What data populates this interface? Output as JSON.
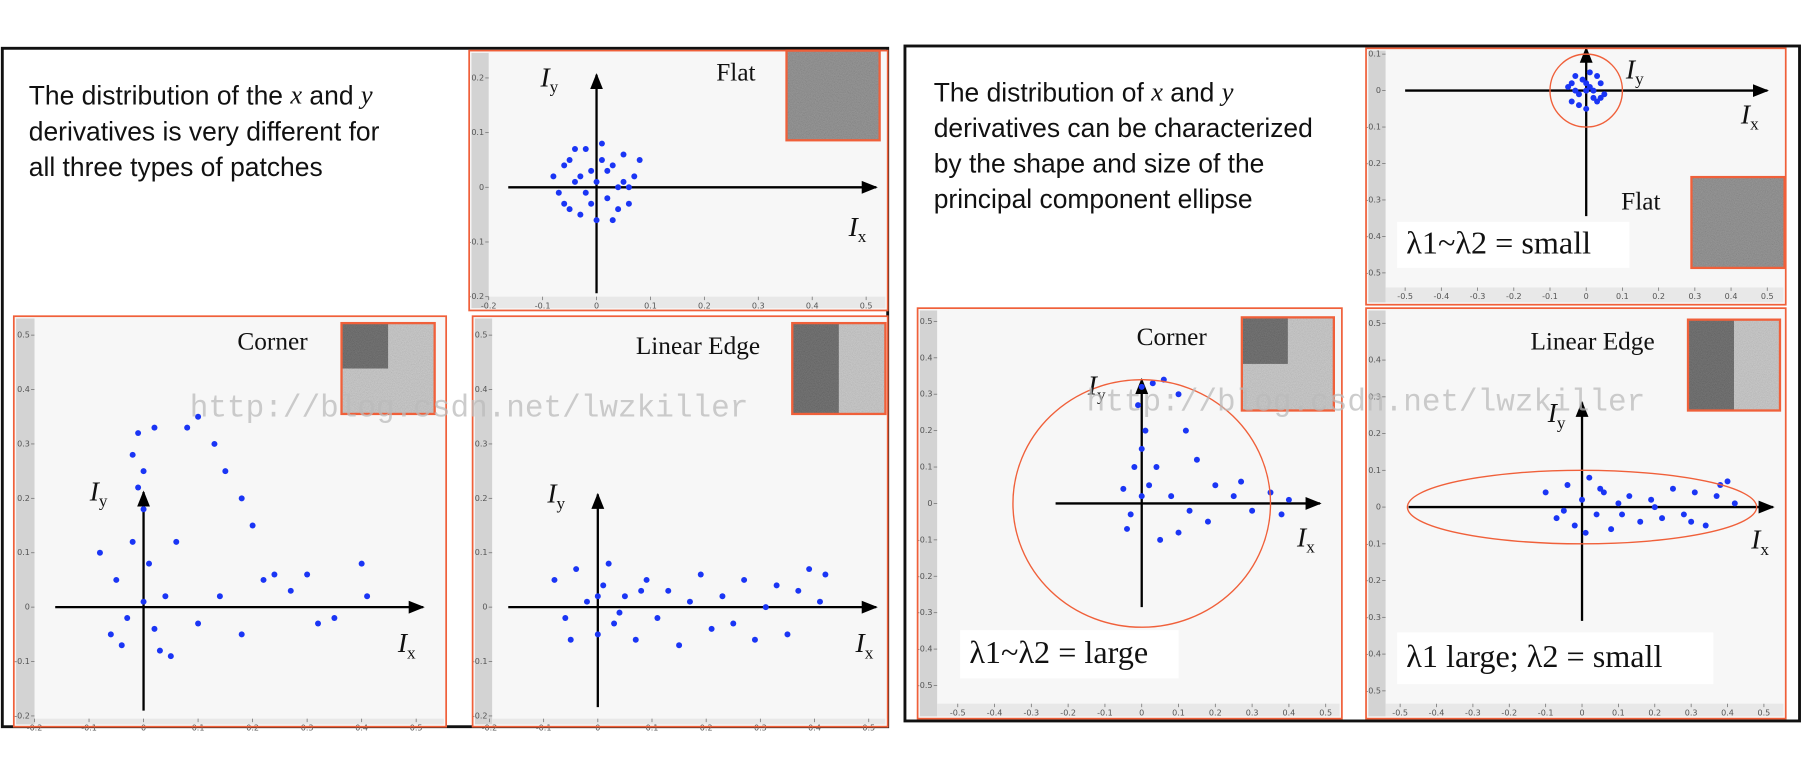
{
  "slides": [
    {
      "text_lines": [
        [
          "The distribution of the ",
          "x",
          " and ",
          "y"
        ],
        [
          "derivatives is very different for"
        ],
        [
          "all three types of patches"
        ]
      ]
    },
    {
      "text_lines": [
        [
          "The distribution of ",
          "x",
          " and ",
          "y"
        ],
        [
          "derivatives can be characterized"
        ],
        [
          "by the shape and size of the"
        ],
        [
          "principal component ellipse"
        ]
      ]
    }
  ],
  "watermarks": [
    "http://blog.csdn.net/lwzkiller",
    "http://blog.csdn.net/lwzkiller"
  ],
  "chart_data": [
    {
      "type": "scatter",
      "title": "Flat",
      "xlabel": "I",
      "xlabel_sub": "x",
      "ylabel": "I",
      "ylabel_sub": "y",
      "color": "#1a35f5",
      "xlim": [
        -0.2,
        0.54
      ],
      "ylim": [
        -0.2,
        0.25
      ],
      "xticks": [
        -0.2,
        -0.1,
        0,
        0.1,
        0.2,
        0.3,
        0.4,
        0.5
      ],
      "yticks": [
        -0.2,
        -0.1,
        0,
        0.1,
        0.2
      ],
      "x": [
        -0.08,
        -0.06,
        -0.05,
        -0.04,
        -0.03,
        -0.02,
        -0.01,
        0,
        0.01,
        0.02,
        0.03,
        0.04,
        0.05,
        0.06,
        0.07,
        -0.07,
        -0.05,
        -0.03,
        -0.01,
        0.01,
        0.03,
        0.05,
        -0.06,
        -0.02,
        0.02,
        0.06,
        -0.04,
        0,
        0.04,
        0.08
      ],
      "y": [
        0.02,
        -0.03,
        0.05,
        0.01,
        -0.05,
        0.07,
        0.03,
        -0.06,
        0.08,
        -0.02,
        0.04,
        -0.04,
        0.06,
        0,
        0.02,
        -0.01,
        -0.04,
        0.02,
        -0.03,
        0.05,
        -0.06,
        0.01,
        0.04,
        -0.01,
        0.03,
        -0.03,
        0.07,
        0.01,
        0,
        0.05
      ]
    },
    {
      "type": "scatter",
      "title": "Corner",
      "xlabel": "I",
      "xlabel_sub": "x",
      "ylabel": "I",
      "ylabel_sub": "y",
      "color": "#1a35f5",
      "xlim": [
        -0.2,
        0.555
      ],
      "ylim": [
        -0.205,
        0.52
      ],
      "xticks": [
        -0.2,
        -0.1,
        0,
        0.1,
        0.2,
        0.3,
        0.4,
        0.5
      ],
      "yticks": [
        -0.2,
        -0.1,
        0,
        0.1,
        0.2,
        0.3,
        0.4,
        0.5
      ],
      "x": [
        -0.05,
        -0.03,
        0,
        0.02,
        0.04,
        -0.06,
        0.01,
        -0.02,
        0,
        -0.01,
        -0.02,
        -0.01,
        0.02,
        0,
        0.03,
        0.05,
        -0.04,
        0.08,
        0.1,
        0.13,
        0.15,
        0.18,
        0.2,
        0.22,
        0.18,
        0.27,
        0.3,
        0.35,
        0.4,
        0.41,
        0.14,
        0.1,
        0.06,
        -0.08,
        0.24,
        0.32
      ],
      "y": [
        0.05,
        -0.02,
        0.01,
        -0.04,
        0.02,
        -0.05,
        0.08,
        0.12,
        0.18,
        0.22,
        0.28,
        0.32,
        0.33,
        0.25,
        -0.08,
        -0.09,
        -0.07,
        0.33,
        0.35,
        0.3,
        0.25,
        0.2,
        0.15,
        0.05,
        -0.05,
        0.03,
        0.06,
        -0.02,
        0.08,
        0.02,
        0.02,
        -0.03,
        0.12,
        0.1,
        0.06,
        -0.03
      ]
    },
    {
      "type": "scatter",
      "title": "Linear Edge",
      "xlabel": "I",
      "xlabel_sub": "x",
      "ylabel": "I",
      "ylabel_sub": "y",
      "color": "#1a35f5",
      "xlim": [
        -0.195,
        0.535
      ],
      "ylim": [
        -0.205,
        0.52
      ],
      "xticks": [
        -0.2,
        -0.1,
        0,
        0.1,
        0.2,
        0.3,
        0.4,
        0.5
      ],
      "yticks": [
        -0.2,
        -0.1,
        0,
        0.1,
        0.2,
        0.3,
        0.4,
        0.5
      ],
      "x": [
        -0.08,
        -0.06,
        -0.04,
        -0.02,
        0,
        0.01,
        0.02,
        0.03,
        0.05,
        0.07,
        0.09,
        0.11,
        0.13,
        0.15,
        0.17,
        0.19,
        0.21,
        0.23,
        0.25,
        0.27,
        0.29,
        0.31,
        0.33,
        0.35,
        0.37,
        0.39,
        0.41,
        0.42,
        -0.05,
        0,
        0.04,
        0.08
      ],
      "y": [
        0.05,
        -0.02,
        0.07,
        0.01,
        -0.05,
        0.04,
        0.08,
        -0.03,
        0.02,
        -0.06,
        0.05,
        -0.02,
        0.03,
        -0.07,
        0.01,
        0.06,
        -0.04,
        0.02,
        -0.03,
        0.05,
        -0.06,
        0,
        0.04,
        -0.05,
        0.03,
        0.07,
        0.01,
        0.06,
        -0.06,
        0.02,
        -0.01,
        0.03
      ]
    },
    {
      "type": "scatter",
      "title": "Flat",
      "xlabel": "I",
      "xlabel_sub": "x",
      "ylabel": "I",
      "ylabel_sub": "y",
      "color": "#1a35f5",
      "annotation": "λ1~λ2 = small",
      "ellipse": {
        "cx": 0,
        "cy": 0,
        "rx": 0.1,
        "ry": 0.1,
        "color": "#f0603a"
      },
      "xlim": [
        -0.554,
        0.551
      ],
      "ylim": [
        -0.54,
        0.116
      ],
      "xticks": [
        -0.5,
        -0.4,
        -0.3,
        -0.2,
        -0.1,
        0,
        0.1,
        0.2,
        0.3,
        0.4,
        0.5
      ],
      "yticks": [
        -0.5,
        -0.4,
        -0.3,
        -0.2,
        -0.1,
        0,
        0.1
      ],
      "x": [
        -0.05,
        -0.04,
        -0.03,
        -0.02,
        -0.01,
        0,
        0.01,
        0.02,
        0.03,
        0.04,
        0.05,
        -0.03,
        0,
        0.03,
        -0.02,
        0.02,
        -0.04,
        0.04,
        0,
        0.01
      ],
      "y": [
        0.01,
        -0.03,
        0.04,
        -0.01,
        0.03,
        -0.05,
        0.05,
        0,
        -0.03,
        0.02,
        -0.01,
        0,
        0.02,
        0.04,
        -0.04,
        -0.02,
        0.02,
        -0.02,
        0,
        0.01
      ]
    },
    {
      "type": "scatter",
      "title": "Corner",
      "xlabel": "I",
      "xlabel_sub": "x",
      "ylabel": "I",
      "ylabel_sub": "y",
      "color": "#1a35f5",
      "annotation": "λ1~λ2 = large",
      "ellipse": {
        "cx": 0,
        "cy": 0,
        "rx": 0.35,
        "ry": 0.34,
        "color": "#f0603a"
      },
      "xlim": [
        -0.556,
        0.544
      ],
      "ylim": [
        -0.55,
        0.53
      ],
      "xticks": [
        -0.5,
        -0.4,
        -0.3,
        -0.2,
        -0.1,
        0,
        0.1,
        0.2,
        0.3,
        0.4,
        0.5
      ],
      "yticks": [
        -0.5,
        -0.4,
        -0.3,
        -0.2,
        -0.1,
        0,
        0.1,
        0.2,
        0.3,
        0.4,
        0.5
      ],
      "x": [
        0,
        -0.03,
        0.02,
        -0.02,
        0,
        0.01,
        -0.01,
        0,
        0.03,
        0.06,
        0.1,
        0.12,
        0.15,
        0.2,
        0.25,
        0.3,
        0.35,
        0.4,
        0.38,
        0.18,
        0.1,
        0.05,
        -0.04,
        0.04,
        0.08,
        -0.05,
        0.27,
        0.13
      ],
      "y": [
        0.02,
        -0.03,
        0.05,
        0.1,
        0.15,
        0.2,
        0.27,
        0.32,
        0.33,
        0.34,
        0.3,
        0.2,
        0.12,
        0.05,
        0.02,
        -0.02,
        0.03,
        0.01,
        -0.03,
        -0.05,
        -0.08,
        -0.1,
        -0.07,
        0.1,
        0.02,
        0.04,
        0.06,
        -0.02
      ]
    },
    {
      "type": "scatter",
      "title": "Linear Edge",
      "xlabel": "I",
      "xlabel_sub": "x",
      "ylabel": "I",
      "ylabel_sub": "y",
      "color": "#1a35f5",
      "annotation": "λ1 large; λ2 = small",
      "ellipse": {
        "cx": 0,
        "cy": 0,
        "rx": 0.48,
        "ry": 0.1,
        "color": "#f0603a"
      },
      "xlim": [
        -0.54,
        0.56
      ],
      "ylim": [
        -0.535,
        0.535
      ],
      "xticks": [
        -0.5,
        -0.4,
        -0.3,
        -0.2,
        -0.1,
        0,
        0.1,
        0.2,
        0.3,
        0.4,
        0.5
      ],
      "yticks": [
        -0.5,
        -0.4,
        -0.3,
        -0.2,
        -0.1,
        0,
        0.1,
        0.2,
        0.3,
        0.4,
        0.5
      ],
      "x": [
        -0.1,
        -0.07,
        -0.04,
        -0.02,
        0,
        0.02,
        0.04,
        0.06,
        0.08,
        0.1,
        0.13,
        0.16,
        0.19,
        0.22,
        0.25,
        0.28,
        0.31,
        0.34,
        0.37,
        0.4,
        0.42,
        -0.05,
        0.01,
        0.05,
        0.11,
        0.2,
        0.3,
        0.38
      ],
      "y": [
        0.04,
        -0.03,
        0.06,
        -0.05,
        0.02,
        0.08,
        -0.02,
        0.04,
        -0.06,
        0.01,
        0.03,
        -0.04,
        0.02,
        -0.03,
        0.05,
        -0.02,
        0.04,
        -0.05,
        0.03,
        0.07,
        0.01,
        -0.01,
        -0.07,
        0.05,
        -0.02,
        0,
        -0.04,
        0.06
      ]
    }
  ]
}
